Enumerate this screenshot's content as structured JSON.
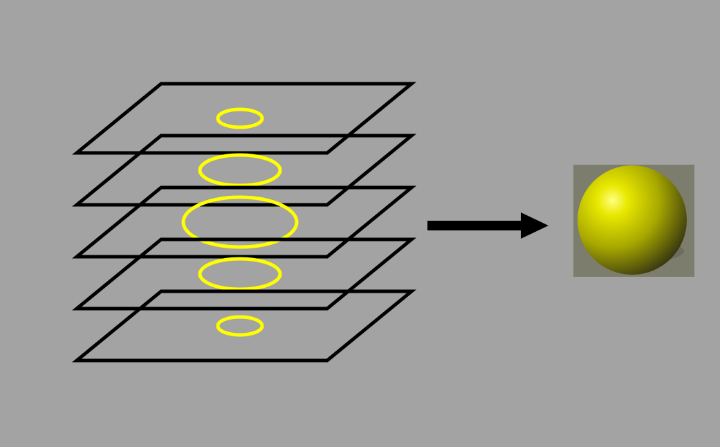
{
  "colors": {
    "background": "#a3a3a3",
    "plane_stroke": "#000000",
    "contour_stroke": "#ffff00",
    "arrow": "#000000",
    "sphere_bg": "#7d7d6d",
    "sphere_highlight": "#ffff80",
    "sphere_mid": "#e8e800",
    "sphere_shadow": "#2e2e12"
  },
  "diagram": {
    "slices": [
      {
        "contour_size": "small"
      },
      {
        "contour_size": "medium"
      },
      {
        "contour_size": "large"
      },
      {
        "contour_size": "medium"
      },
      {
        "contour_size": "small"
      }
    ],
    "result": "sphere"
  }
}
